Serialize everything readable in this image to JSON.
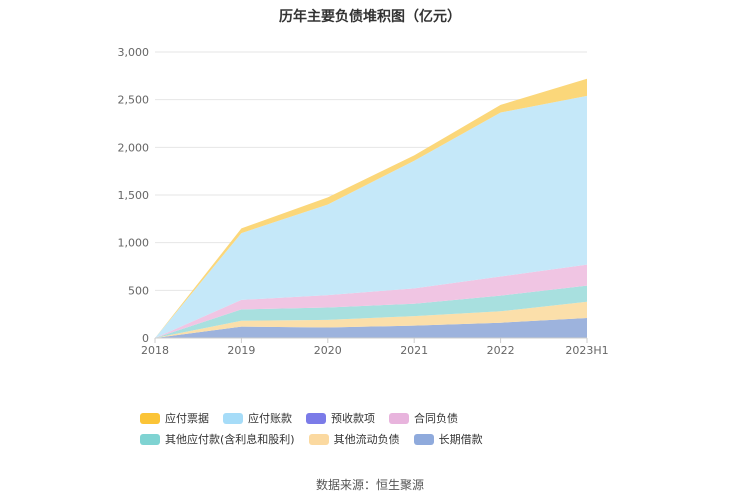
{
  "chart_data": {
    "type": "area",
    "stacked": true,
    "title": "历年主要负债堆积图（亿元）",
    "categories": [
      "2018",
      "2019",
      "2020",
      "2021",
      "2022",
      "2023H1"
    ],
    "y_ticks": [
      "0",
      "500",
      "1,000",
      "1,500",
      "2,000",
      "2,500",
      "3,000"
    ],
    "ylim": [
      0,
      3000
    ],
    "grid": true,
    "legend_position": "bottom",
    "series": [
      {
        "name": "长期借款",
        "color": "#9db3dd",
        "values": [
          0,
          120,
          110,
          130,
          160,
          210
        ]
      },
      {
        "name": "其他流动负债",
        "color": "#fbdfaa",
        "values": [
          0,
          60,
          80,
          100,
          120,
          170
        ]
      },
      {
        "name": "其他应付款(含利息和股利)",
        "color": "#a8e0df",
        "values": [
          0,
          120,
          130,
          130,
          165,
          170
        ]
      },
      {
        "name": "合同负债",
        "color": "#f0c5e3",
        "values": [
          0,
          100,
          130,
          160,
          200,
          220
        ]
      },
      {
        "name": "预收款项",
        "color": "#7b7be8",
        "values": [
          0,
          0,
          0,
          0,
          0,
          0
        ]
      },
      {
        "name": "应付账款",
        "color": "#c5e8f9",
        "values": [
          0,
          700,
          950,
          1340,
          1720,
          1770
        ]
      },
      {
        "name": "应付票据",
        "color": "#fbd77a",
        "values": [
          0,
          50,
          75,
          55,
          80,
          180
        ]
      }
    ],
    "legend": [
      {
        "name": "应付票据",
        "color": "#fbc437"
      },
      {
        "name": "应付账款",
        "color": "#a6dcf8"
      },
      {
        "name": "预收款项",
        "color": "#7b7be8"
      },
      {
        "name": "合同负债",
        "color": "#e8b4dd"
      },
      {
        "name": "其他应付款(含利息和股利)",
        "color": "#7fd3d2"
      },
      {
        "name": "其他流动负债",
        "color": "#fbd9a0"
      },
      {
        "name": "长期借款",
        "color": "#8faadc"
      }
    ]
  },
  "source": "数据来源：恒生聚源"
}
